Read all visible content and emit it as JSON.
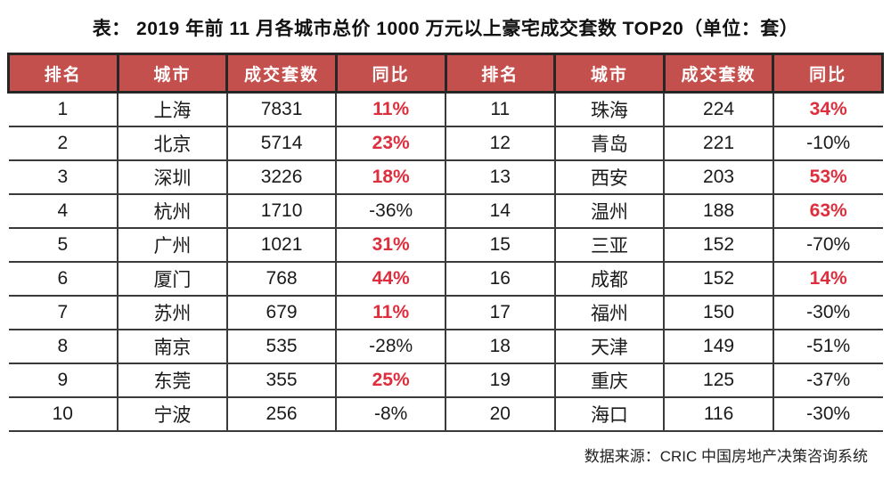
{
  "title": "表：  2019 年前 11 月各城市总价 1000 万元以上豪宅成交套数 TOP20（单位：套）",
  "header": {
    "columns": [
      "排名",
      "城市",
      "成交套数",
      "同比"
    ]
  },
  "table": {
    "left_rows": [
      {
        "rank": "1",
        "city": "上海",
        "count": "7831",
        "yoy": "11%",
        "up": true
      },
      {
        "rank": "2",
        "city": "北京",
        "count": "5714",
        "yoy": "23%",
        "up": true
      },
      {
        "rank": "3",
        "city": "深圳",
        "count": "3226",
        "yoy": "18%",
        "up": true
      },
      {
        "rank": "4",
        "city": "杭州",
        "count": "1710",
        "yoy": "-36%",
        "up": false
      },
      {
        "rank": "5",
        "city": "广州",
        "count": "1021",
        "yoy": "31%",
        "up": true
      },
      {
        "rank": "6",
        "city": "厦门",
        "count": "768",
        "yoy": "44%",
        "up": true
      },
      {
        "rank": "7",
        "city": "苏州",
        "count": "679",
        "yoy": "11%",
        "up": true
      },
      {
        "rank": "8",
        "city": "南京",
        "count": "535",
        "yoy": "-28%",
        "up": false
      },
      {
        "rank": "9",
        "city": "东莞",
        "count": "355",
        "yoy": "25%",
        "up": true
      },
      {
        "rank": "10",
        "city": "宁波",
        "count": "256",
        "yoy": "-8%",
        "up": false
      }
    ],
    "right_rows": [
      {
        "rank": "11",
        "city": "珠海",
        "count": "224",
        "yoy": "34%",
        "up": true
      },
      {
        "rank": "12",
        "city": "青岛",
        "count": "221",
        "yoy": "-10%",
        "up": false
      },
      {
        "rank": "13",
        "city": "西安",
        "count": "203",
        "yoy": "53%",
        "up": true
      },
      {
        "rank": "14",
        "city": "温州",
        "count": "188",
        "yoy": "63%",
        "up": true
      },
      {
        "rank": "15",
        "city": "三亚",
        "count": "152",
        "yoy": "-70%",
        "up": false
      },
      {
        "rank": "16",
        "city": "成都",
        "count": "152",
        "yoy": "14%",
        "up": true
      },
      {
        "rank": "17",
        "city": "福州",
        "count": "150",
        "yoy": "-30%",
        "up": false
      },
      {
        "rank": "18",
        "city": "天津",
        "count": "149",
        "yoy": "-51%",
        "up": false
      },
      {
        "rank": "19",
        "city": "重庆",
        "count": "125",
        "yoy": "-37%",
        "up": false
      },
      {
        "rank": "20",
        "city": "海口",
        "count": "116",
        "yoy": "-30%",
        "up": false
      }
    ]
  },
  "footer": {
    "source": "数据来源：CRIC 中国房地产决策咨询系统"
  },
  "colors": {
    "header_bg": "#c4504d",
    "header_text": "#ffffff",
    "yoy_up": "#dd2e3d",
    "text": "#1a1a1a",
    "border": "#3a3a3a"
  },
  "chart_data": {
    "type": "table",
    "title": "表：  2019 年前 11 月各城市总价 1000 万元以上豪宅成交套数 TOP20（单位：套）",
    "columns": [
      "排名",
      "城市",
      "成交套数",
      "同比"
    ],
    "rows": [
      [
        1,
        "上海",
        7831,
        "11%"
      ],
      [
        2,
        "北京",
        5714,
        "23%"
      ],
      [
        3,
        "深圳",
        3226,
        "18%"
      ],
      [
        4,
        "杭州",
        1710,
        "-36%"
      ],
      [
        5,
        "广州",
        1021,
        "31%"
      ],
      [
        6,
        "厦门",
        768,
        "44%"
      ],
      [
        7,
        "苏州",
        679,
        "11%"
      ],
      [
        8,
        "南京",
        535,
        "-28%"
      ],
      [
        9,
        "东莞",
        355,
        "25%"
      ],
      [
        10,
        "宁波",
        256,
        "-8%"
      ],
      [
        11,
        "珠海",
        224,
        "34%"
      ],
      [
        12,
        "青岛",
        221,
        "-10%"
      ],
      [
        13,
        "西安",
        203,
        "53%"
      ],
      [
        14,
        "温州",
        188,
        "63%"
      ],
      [
        15,
        "三亚",
        152,
        "-70%"
      ],
      [
        16,
        "成都",
        152,
        "14%"
      ],
      [
        17,
        "福州",
        150,
        "-30%"
      ],
      [
        18,
        "天津",
        149,
        "-51%"
      ],
      [
        19,
        "重庆",
        125,
        "-37%"
      ],
      [
        20,
        "海口",
        116,
        "-30%"
      ]
    ],
    "notes": "同比 values in red/bold indicate positive year-over-year growth; black values are declines.",
    "source": "数据来源：CRIC 中国房地产决策咨询系统"
  }
}
